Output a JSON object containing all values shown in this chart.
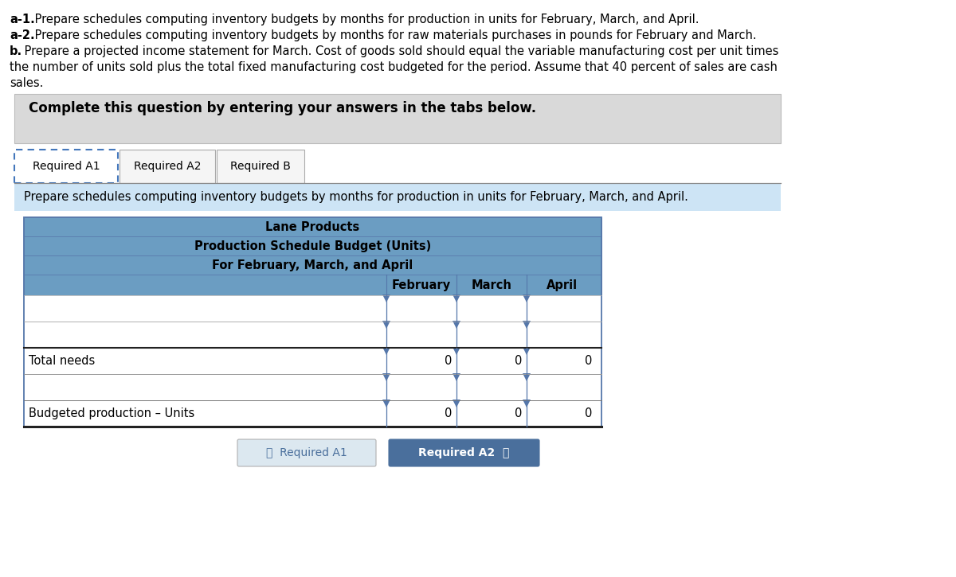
{
  "bg_color": "#ffffff",
  "text_color": "#000000",
  "header_lines": [
    {
      "bold_part": "a-1.",
      "normal_part": " Prepare schedules computing inventory budgets by months for production in units for February, March, and April."
    },
    {
      "bold_part": "a-2.",
      "normal_part": " Prepare schedules computing inventory budgets by months for raw materials purchases in pounds for February and March."
    },
    {
      "bold_part": "b.",
      "normal_part": " Prepare a projected income statement for March. Cost of goods sold should equal the variable manufacturing cost per unit times"
    },
    {
      "bold_part": "",
      "normal_part": "the number of units sold plus the total fixed manufacturing cost budgeted for the period. Assume that 40 percent of sales are cash"
    },
    {
      "bold_part": "",
      "normal_part": "sales."
    }
  ],
  "complete_question_text": "Complete this question by entering your answers in the tabs below.",
  "tabs": [
    "Required A1",
    "Required A2",
    "Required B"
  ],
  "active_tab": 0,
  "instruction_text": "Prepare schedules computing inventory budgets by months for production in units for February, March, and April.",
  "table_title1": "Lane Products",
  "table_title2": "Production Schedule Budget (Units)",
  "table_title3": "For February, March, and April",
  "col_headers": [
    "February",
    "March",
    "April"
  ],
  "row_labels": [
    "",
    "",
    "Total needs",
    "",
    "Budgeted production – Units"
  ],
  "data_rows": [
    [
      null,
      null,
      null
    ],
    [
      null,
      null,
      null
    ],
    [
      0,
      0,
      0
    ],
    [
      null,
      null,
      null
    ],
    [
      0,
      0,
      0
    ]
  ],
  "table_header_bg": "#6b9dc2",
  "gray_bg": "#d9d9d9",
  "light_blue_bg": "#cde4f5",
  "nav_btn_left_text": "〈  Required A1",
  "nav_btn_left_bg": "#dce8f0",
  "nav_btn_right_text": "Required A2  〉",
  "nav_btn_right_bg": "#4a6f9c",
  "nav_btn_right_text_color": "#ffffff",
  "nav_btn_left_text_color": "#4a6f9c",
  "tab_active_border_color": "#4477bb",
  "instruction_bg": "#cde4f5",
  "tab_border_color": "#aaaaaa",
  "table_outline_color": "#5577aa"
}
